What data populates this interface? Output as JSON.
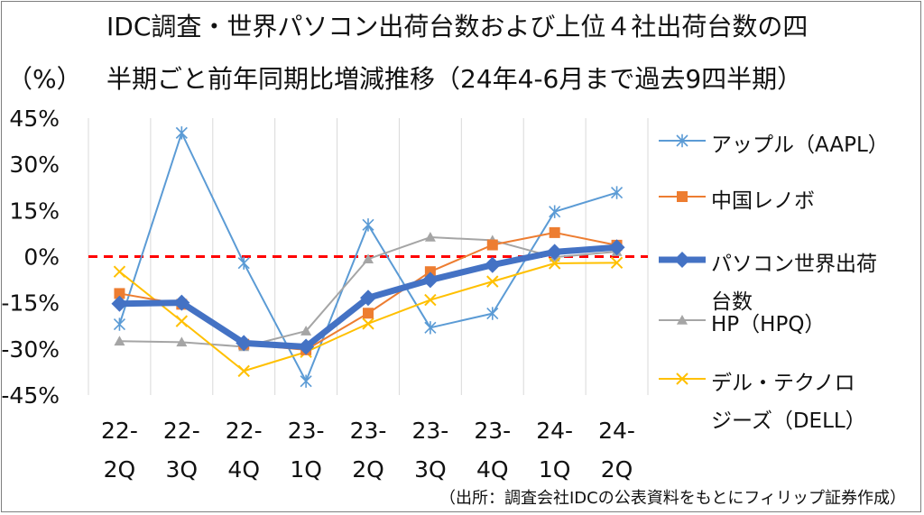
{
  "title_line1": "IDC調査・世界パソコン出荷台数および上位４社出荷台数の四",
  "title_line2": "半期ごと前年同期比増減推移（24年4-6月まで過去9四半期）",
  "unit_label": "（%）",
  "source_note": "（出所：調査会社IDCの公表資料をもとにフィリップ証券作成）",
  "chart_data": {
    "type": "line",
    "categories": [
      "22-\n2Q",
      "22-\n3Q",
      "22-\n4Q",
      "23-\n1Q",
      "23-\n2Q",
      "23-\n3Q",
      "23-\n4Q",
      "24-\n1Q",
      "24-\n2Q"
    ],
    "category_line1": [
      "22-",
      "22-",
      "22-",
      "23-",
      "23-",
      "23-",
      "23-",
      "24-",
      "24-"
    ],
    "category_line2": [
      "2Q",
      "3Q",
      "4Q",
      "1Q",
      "2Q",
      "3Q",
      "4Q",
      "1Q",
      "2Q"
    ],
    "ylim": [
      -45,
      45
    ],
    "yticks": [
      45,
      30,
      15,
      0,
      -15,
      -30,
      -45
    ],
    "ytick_labels": [
      "45%",
      "30%",
      "15%",
      "0%",
      "-15%",
      "-30%",
      "-45%"
    ],
    "reference_line": {
      "y": 0,
      "color": "#ff0000",
      "style": "dashed"
    },
    "series": [
      {
        "name": "アップル（AAPL）",
        "color": "#5b9bd5",
        "marker": "asterisk",
        "width": 2,
        "values": [
          -22,
          40.2,
          -2.1,
          -40.5,
          10.3,
          -23.1,
          -18.5,
          14.6,
          20.8
        ]
      },
      {
        "name": "中国レノボ",
        "color": "#ed7d31",
        "marker": "square",
        "width": 2,
        "values": [
          -12,
          -15.5,
          -28.5,
          -30.3,
          -18.4,
          -4.9,
          3.8,
          7.8,
          3.7
        ]
      },
      {
        "name": "パソコン世界出荷台数",
        "color": "#4472c4",
        "marker": "diamond",
        "width": 7,
        "values": [
          -15.3,
          -15,
          -28.1,
          -29.3,
          -13.4,
          -7.6,
          -2.7,
          1.5,
          3
        ]
      },
      {
        "name": "HP（HPQ）",
        "color": "#a5a5a5",
        "marker": "triangle",
        "width": 2,
        "values": [
          -27.5,
          -27.8,
          -29.3,
          -24.2,
          -0.8,
          6.3,
          5.3,
          -0.2,
          1.6
        ]
      },
      {
        "name": "デル・テクノロジーズ（DELL）",
        "color": "#ffc000",
        "marker": "x",
        "width": 2,
        "values": [
          -4.9,
          -21,
          -37.2,
          -31,
          -21.8,
          -14.1,
          -8.1,
          -2.2,
          -2
        ]
      }
    ],
    "legend": {
      "placement": "right",
      "entries": [
        {
          "lines": [
            "アップル（AAPL）"
          ]
        },
        {
          "lines": [
            "中国レノボ"
          ]
        },
        {
          "lines": [
            "パソコン世界出荷",
            "台数"
          ]
        },
        {
          "lines": [
            "HP（HPQ）"
          ]
        },
        {
          "lines": [
            "デル・テクノロ",
            "ジーズ（DELL）"
          ]
        }
      ]
    },
    "grid": {
      "vertical": true,
      "horizontal": false
    }
  }
}
